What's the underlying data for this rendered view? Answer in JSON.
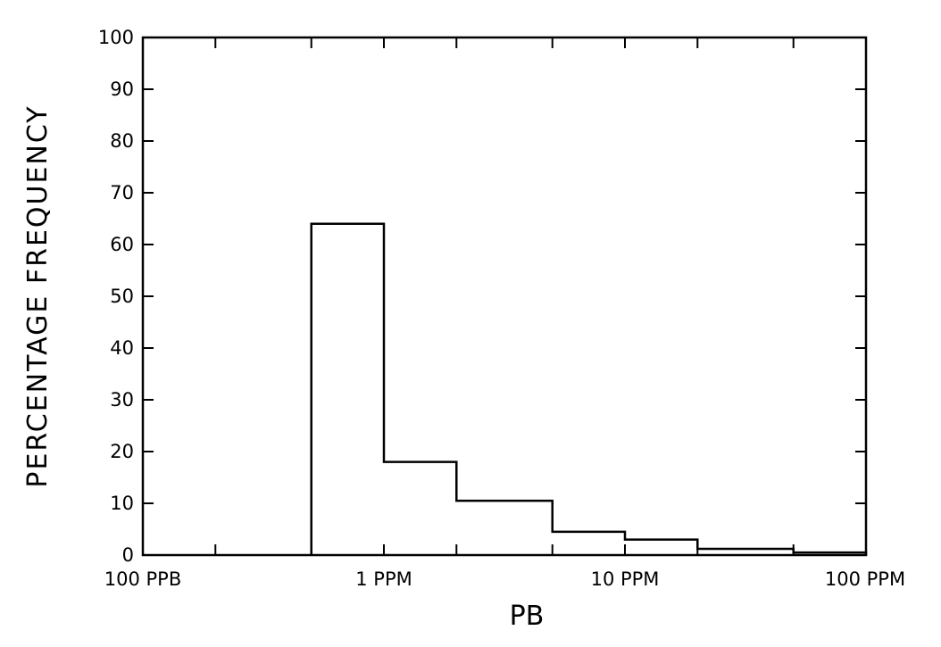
{
  "chart_data": {
    "type": "histogram",
    "title": "",
    "xlabel": "PB",
    "ylabel": "PERCENTAGE FREQUENCY",
    "x_scale": "log",
    "x_unit": "PPM",
    "xlim": [
      0.1,
      100
    ],
    "ylim": [
      0,
      100
    ],
    "y_ticks": [
      "0",
      "10",
      "20",
      "30",
      "40",
      "50",
      "60",
      "70",
      "80",
      "90",
      "100"
    ],
    "x_tick_labels": [
      {
        "value": 0.1,
        "label": "100 PPB"
      },
      {
        "value": 1,
        "label": "1 PPM"
      },
      {
        "value": 10,
        "label": "10 PPM"
      },
      {
        "value": 100,
        "label": "100 PPM"
      }
    ],
    "x_minor_ticks": [
      0.2,
      0.5,
      2,
      5,
      20,
      50
    ],
    "bins": [
      {
        "from": 0.5,
        "to": 1,
        "value": 64
      },
      {
        "from": 1,
        "to": 2,
        "value": 18
      },
      {
        "from": 2,
        "to": 5,
        "value": 10.5
      },
      {
        "from": 5,
        "to": 10,
        "value": 4.5
      },
      {
        "from": 10,
        "to": 20,
        "value": 3
      },
      {
        "from": 20,
        "to": 50,
        "value": 1.2
      },
      {
        "from": 50,
        "to": 100,
        "value": 0.5
      }
    ],
    "grid": false,
    "legend": "none"
  }
}
